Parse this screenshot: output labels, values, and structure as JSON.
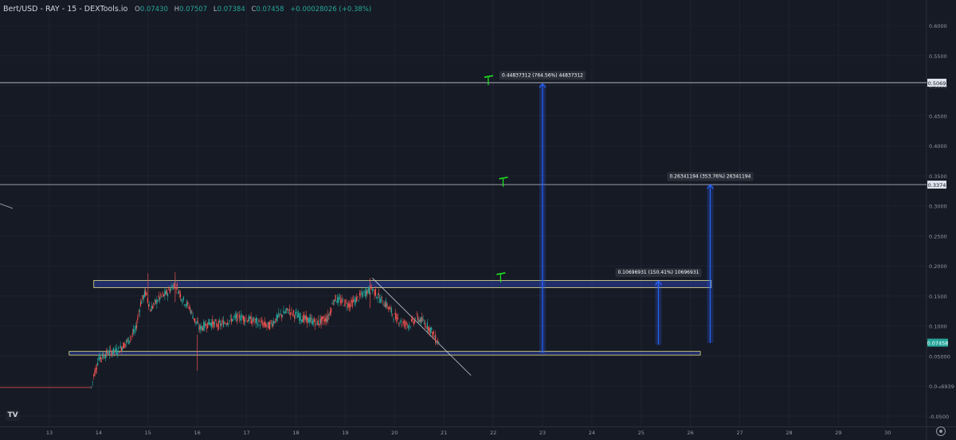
{
  "header": {
    "symbol": "Bert/USD - RAY - 15 - DEXTools.io",
    "open_label": "O",
    "open": "0.07430",
    "high_label": "H",
    "high": "0.07507",
    "low_label": "L",
    "low": "0.07384",
    "close_label": "C",
    "close": "0.07458",
    "change": "+0.00028026 (+0.38%)"
  },
  "logo": "TV",
  "colors": {
    "background": "#161a25",
    "up": "#26a69a",
    "down": "#ef5350",
    "zone": "#2b3fa3",
    "target_arrow": "#2962ff",
    "flag": "#1ee81e"
  },
  "chart_data": {
    "type": "candlestick",
    "x_axis_ticks": [
      "13",
      "14",
      "15",
      "16",
      "17",
      "18",
      "19",
      "20",
      "21",
      "22",
      "23",
      "24",
      "25",
      "26",
      "27",
      "28",
      "29",
      "30"
    ],
    "y_axis_ticks": [
      "0.6000",
      "0.5500",
      "0.5000",
      "0.4500",
      "0.4000",
      "0.3500",
      "0.3000",
      "0.2500",
      "0.2000",
      "0.1500",
      "0.1000",
      "0.05000",
      "0.0-₆6939",
      "-0.0500"
    ],
    "ylim": [
      -0.06,
      0.63
    ],
    "price_badges": [
      {
        "value": 0.5069,
        "label": "0.5069"
      },
      {
        "value": 0.3374,
        "label": "0.3374"
      }
    ],
    "current_price": {
      "value": 0.07458,
      "label": "0.07458"
    },
    "horizontal_lines": [
      0.5069,
      0.3374
    ],
    "zones": [
      {
        "from_day": 13.9,
        "to_day": 26.42,
        "low": 0.166,
        "high": 0.178
      },
      {
        "from_day": 13.4,
        "to_day": 26.2,
        "low": 0.054,
        "high": 0.06
      }
    ],
    "measurements": [
      {
        "day": 23.0,
        "from": 0.057,
        "to": 0.505,
        "label": "0.44837312 (764.56%) 44837312"
      },
      {
        "day": 26.4,
        "from": 0.074,
        "to": 0.337,
        "label": "0.26341194 (353.76%) 26341194"
      },
      {
        "day": 25.35,
        "from": 0.071,
        "to": 0.177,
        "label": "0.10696931 (150.41%) 10696931"
      }
    ],
    "flags": [
      {
        "day": 21.9,
        "value": 0.516
      },
      {
        "day": 22.2,
        "value": 0.347
      },
      {
        "day": 22.15,
        "value": 0.188
      }
    ],
    "trendline": {
      "from": [
        19.55,
        0.182
      ],
      "to": [
        21.55,
        0.02
      ]
    },
    "price_series": [
      [
        12.0,
        0.0
      ],
      [
        13.5,
        0.0
      ],
      [
        13.85,
        0.0
      ],
      [
        13.9,
        0.02
      ],
      [
        14.0,
        0.048
      ],
      [
        14.2,
        0.058
      ],
      [
        14.4,
        0.062
      ],
      [
        14.6,
        0.078
      ],
      [
        14.75,
        0.096
      ],
      [
        14.85,
        0.14
      ],
      [
        14.95,
        0.158
      ],
      [
        15.05,
        0.13
      ],
      [
        15.2,
        0.146
      ],
      [
        15.4,
        0.158
      ],
      [
        15.55,
        0.174
      ],
      [
        15.7,
        0.147
      ],
      [
        15.85,
        0.132
      ],
      [
        15.95,
        0.112
      ],
      [
        16.05,
        0.098
      ],
      [
        16.25,
        0.108
      ],
      [
        16.45,
        0.104
      ],
      [
        16.65,
        0.112
      ],
      [
        16.85,
        0.118
      ],
      [
        17.05,
        0.113
      ],
      [
        17.25,
        0.108
      ],
      [
        17.45,
        0.102
      ],
      [
        17.65,
        0.118
      ],
      [
        17.85,
        0.128
      ],
      [
        18.05,
        0.118
      ],
      [
        18.25,
        0.112
      ],
      [
        18.45,
        0.108
      ],
      [
        18.65,
        0.116
      ],
      [
        18.78,
        0.148
      ],
      [
        18.95,
        0.142
      ],
      [
        19.1,
        0.138
      ],
      [
        19.25,
        0.148
      ],
      [
        19.4,
        0.158
      ],
      [
        19.55,
        0.164
      ],
      [
        19.7,
        0.148
      ],
      [
        19.85,
        0.136
      ],
      [
        20.0,
        0.118
      ],
      [
        20.15,
        0.108
      ],
      [
        20.3,
        0.104
      ],
      [
        20.45,
        0.116
      ],
      [
        20.6,
        0.108
      ],
      [
        20.75,
        0.094
      ],
      [
        20.85,
        0.078
      ],
      [
        20.92,
        0.0746
      ]
    ]
  }
}
